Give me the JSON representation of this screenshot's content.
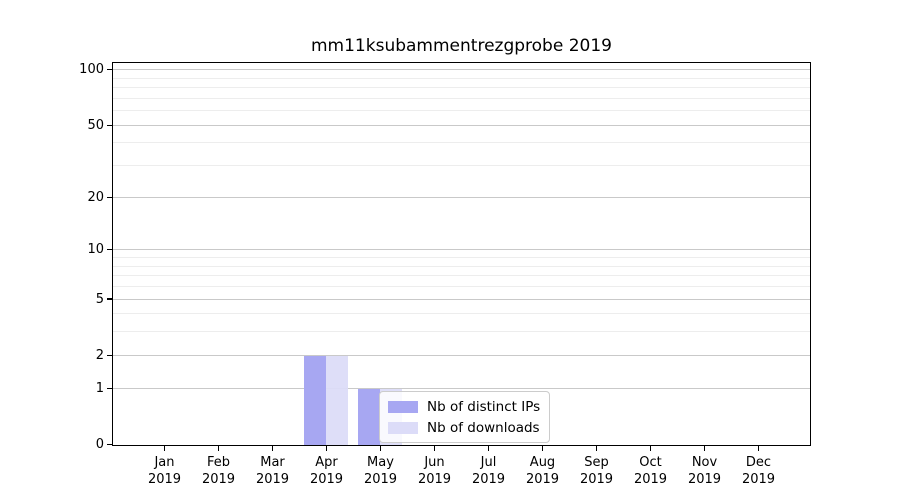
{
  "chart_data": {
    "type": "bar",
    "title": "mm11ksubammentrezgprobe 2019",
    "categories": [
      "Jan",
      "Feb",
      "Mar",
      "Apr",
      "May",
      "Jun",
      "Jul",
      "Aug",
      "Sep",
      "Oct",
      "Nov",
      "Dec"
    ],
    "category_year": "2019",
    "series": [
      {
        "name": "Nb of distinct IPs",
        "color": "#a7a7f2",
        "values": [
          0,
          0,
          0,
          2,
          1,
          0,
          0,
          0,
          0,
          0,
          0,
          0
        ]
      },
      {
        "name": "Nb of downloads",
        "color": "#dcdcf8",
        "values": [
          0,
          0,
          0,
          2,
          1,
          0,
          0,
          0,
          0,
          0,
          0,
          0
        ]
      }
    ],
    "xlabel": "",
    "ylabel": "",
    "yscale": "log1p",
    "ylim": [
      0,
      108
    ],
    "y_major_ticks": [
      0,
      1,
      2,
      5,
      10,
      20,
      50,
      100
    ],
    "y_minor_ticks": [
      3,
      4,
      6,
      7,
      8,
      9,
      30,
      40,
      60,
      70,
      80,
      90
    ],
    "grid": "horizontal",
    "legend_position": "lower-center-inside"
  },
  "colors": {
    "major_grid": "#c9c9c9",
    "minor_grid": "#ededed",
    "spine": "#000000",
    "text": "#000000",
    "legend_border": "#cccccc"
  }
}
